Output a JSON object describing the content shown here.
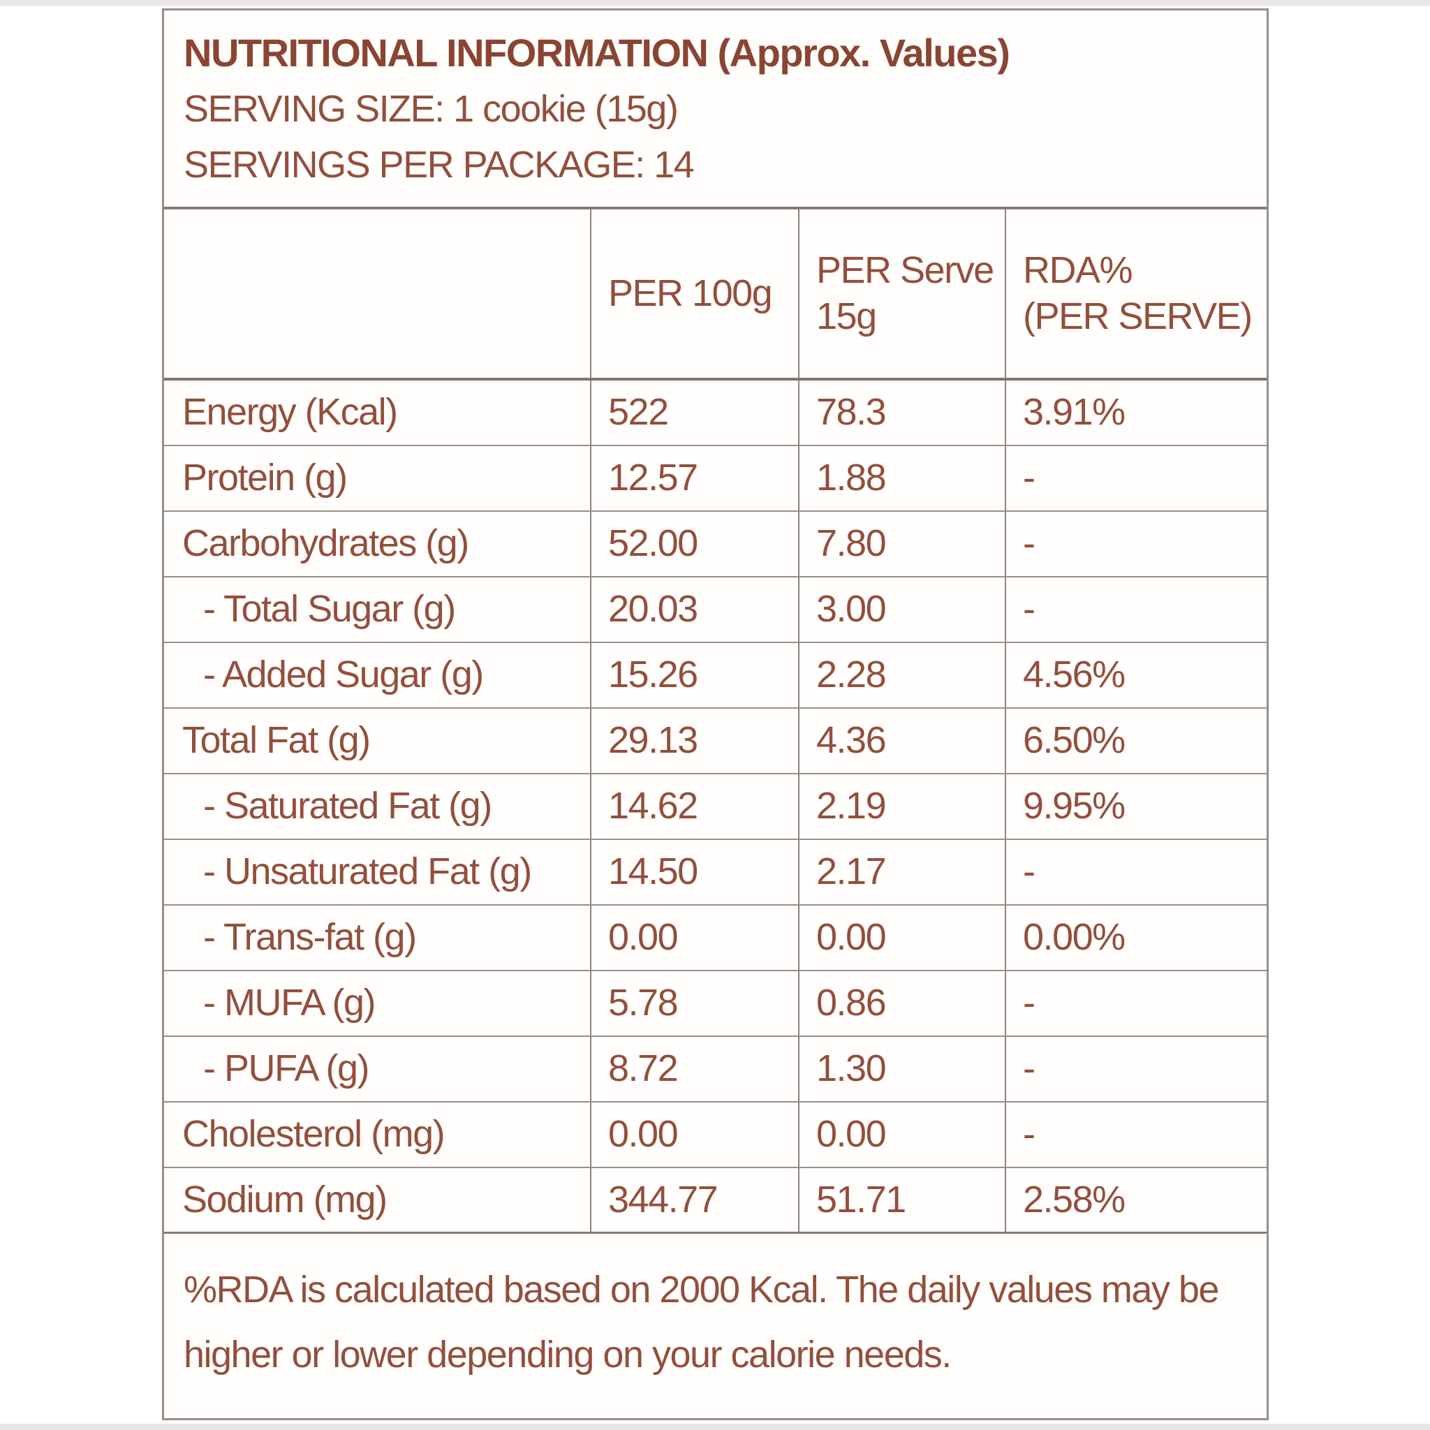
{
  "colors": {
    "text": "#934f3c",
    "title_text": "#8a4532",
    "grid_line": "#8d8480",
    "outer_border": "#988e89",
    "background": "#ffffff",
    "label_background": "#fffefd"
  },
  "label": {
    "title": "NUTRITIONAL INFORMATION (Approx. Values)",
    "serving_size": "SERVING SIZE: 1 cookie (15g)",
    "servings_per_package": "SERVINGS PER PACKAGE: 14",
    "table": {
      "col_headers": {
        "nutrient": "",
        "per_100g": "PER 100g",
        "per_serve": "PER Serve\n15g",
        "rda": "RDA%\n(PER SERVE)"
      },
      "rows": [
        {
          "label": "Energy (Kcal)",
          "per_100g": "522",
          "per_serve": "78.3",
          "rda": "3.91%"
        },
        {
          "label": "Protein (g)",
          "per_100g": "12.57",
          "per_serve": "1.88",
          "rda": "-"
        },
        {
          "label": "Carbohydrates (g)",
          "per_100g": "52.00",
          "per_serve": "7.80",
          "rda": "-"
        },
        {
          "label": "- Total Sugar (g)",
          "per_100g": "20.03",
          "per_serve": "3.00",
          "rda": "-"
        },
        {
          "label": "- Added Sugar (g)",
          "per_100g": "15.26",
          "per_serve": "2.28",
          "rda": "4.56%"
        },
        {
          "label": "Total Fat (g)",
          "per_100g": "29.13",
          "per_serve": "4.36",
          "rda": "6.50%"
        },
        {
          "label": "- Saturated Fat (g)",
          "per_100g": "14.62",
          "per_serve": "2.19",
          "rda": "9.95%"
        },
        {
          "label": "- Unsaturated Fat (g)",
          "per_100g": "14.50",
          "per_serve": "2.17",
          "rda": "-"
        },
        {
          "label": "- Trans-fat (g)",
          "per_100g": "0.00",
          "per_serve": "0.00",
          "rda": "0.00%"
        },
        {
          "label": "- MUFA (g)",
          "per_100g": "5.78",
          "per_serve": "0.86",
          "rda": "-"
        },
        {
          "label": "- PUFA (g)",
          "per_100g": "8.72",
          "per_serve": "1.30",
          "rda": "-"
        },
        {
          "label": "Cholesterol (mg)",
          "per_100g": "0.00",
          "per_serve": "0.00",
          "rda": "-"
        },
        {
          "label": "Sodium (mg)",
          "per_100g": "344.77",
          "per_serve": "51.71",
          "rda": "2.58%"
        }
      ]
    },
    "note": "%RDA is calculated based on 2000 Kcal. The daily values may be higher or lower depending on your calorie needs."
  }
}
